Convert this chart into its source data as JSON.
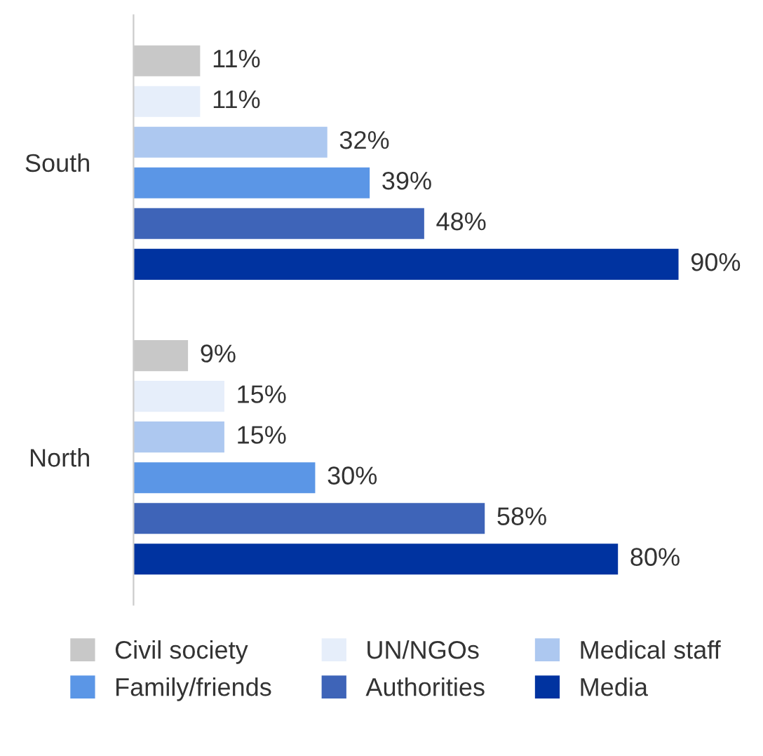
{
  "chart_data": {
    "type": "bar",
    "orientation": "horizontal",
    "categories": [
      "South",
      "North"
    ],
    "series": [
      {
        "name": "Civil society",
        "color": "#c8c8c8",
        "values": [
          11,
          9
        ],
        "value_labels": [
          "11%",
          "9%"
        ]
      },
      {
        "name": "UN/NGOs",
        "color": "#e6eefa",
        "values": [
          11,
          15
        ],
        "value_labels": [
          "11%",
          "15%"
        ]
      },
      {
        "name": "Medical staff",
        "color": "#adc8f0",
        "values": [
          32,
          15
        ],
        "value_labels": [
          "32%",
          "15%"
        ]
      },
      {
        "name": "Family/friends",
        "color": "#5b96e6",
        "values": [
          39,
          30
        ],
        "value_labels": [
          "39%",
          "30%"
        ]
      },
      {
        "name": "Authorities",
        "color": "#3e64b8",
        "values": [
          48,
          58
        ],
        "value_labels": [
          "48%",
          "58%"
        ]
      },
      {
        "name": "Media",
        "color": "#0033a0",
        "values": [
          90,
          80
        ],
        "value_labels": [
          "90%",
          "80%"
        ]
      }
    ],
    "legend": "bottom",
    "grid": false
  }
}
